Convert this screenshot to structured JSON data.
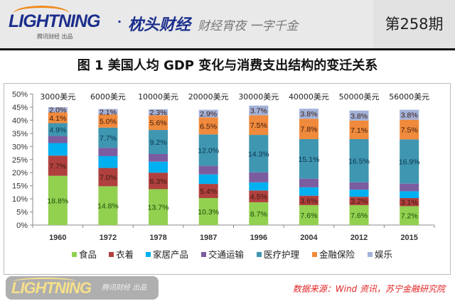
{
  "header": {
    "logo_text": "LIGHTNING",
    "logo_sub": "腾讯财经 出品",
    "program_name": "枕头财经",
    "slogan": "财经宵夜 一字千金",
    "issue": "第258期"
  },
  "watermark": {
    "logo_text": "LIGHTNING",
    "logo_sub": "腾讯财经 出品"
  },
  "source": "数据来源：Wind 资讯，苏宁金融研究院",
  "chart_data": {
    "type": "bar",
    "stacked": true,
    "title": "图 1  美国人均 GDP 变化与消费支出结构的变迁关系",
    "categories": [
      "1960",
      "1972",
      "1978",
      "1987",
      "1996",
      "2004",
      "2012",
      "2015"
    ],
    "top_labels": [
      "3000美元",
      "6000美元",
      "10000美元",
      "20000美元",
      "30000美元",
      "40000美元",
      "50000美元",
      "56000美元"
    ],
    "ylim": [
      0,
      50
    ],
    "yticks": [
      "0%",
      "5%",
      "10%",
      "15%",
      "20%",
      "25%",
      "30%",
      "35%",
      "40%",
      "45%",
      "50%"
    ],
    "legend_position": "bottom",
    "grid": false,
    "series": [
      {
        "name": "食品",
        "color": "#92d050",
        "values": [
          18.8,
          14.8,
          13.7,
          10.3,
          8.7,
          7.6,
          7.6,
          7.2
        ],
        "labeled": true
      },
      {
        "name": "衣着",
        "color": "#b0403e",
        "values": [
          7.7,
          7.0,
          6.3,
          5.4,
          4.5,
          3.6,
          3.2,
          3.1
        ],
        "labeled": true
      },
      {
        "name": "家居产品",
        "color": "#00b0f0",
        "values": [
          4.8,
          4.5,
          4.2,
          3.6,
          3.1,
          3.2,
          2.7,
          2.6
        ],
        "labeled": false
      },
      {
        "name": "交通运输",
        "color": "#7b5ca0",
        "values": [
          2.7,
          3.2,
          2.9,
          3.3,
          3.8,
          3.3,
          2.8,
          2.9
        ],
        "labeled": false
      },
      {
        "name": "医疗护理",
        "color": "#3f96b0",
        "values": [
          4.9,
          7.7,
          9.2,
          12.0,
          14.3,
          15.1,
          16.5,
          16.9
        ],
        "labeled": true
      },
      {
        "name": "金融保险",
        "color": "#f08a3c",
        "values": [
          4.1,
          5.0,
          5.6,
          6.5,
          7.5,
          7.8,
          7.1,
          7.5
        ],
        "labeled": true
      },
      {
        "name": "娱乐",
        "color": "#a3b2d9",
        "values": [
          2.0,
          2.1,
          2.3,
          2.9,
          3.7,
          3.8,
          3.8,
          3.8
        ],
        "labeled": true
      }
    ]
  }
}
